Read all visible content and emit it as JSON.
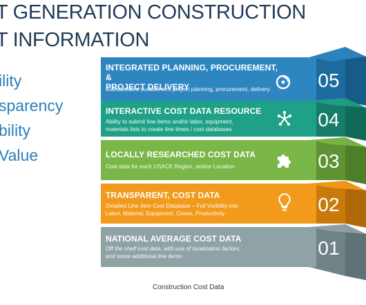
{
  "title": {
    "line1": "T GENERATION CONSTRUCTION",
    "line2": "T INFORMATION"
  },
  "side_items": [
    "ility",
    "sparency",
    "bility",
    "Value"
  ],
  "tiers": [
    {
      "number": "05",
      "title_line1": "INTEGRATED PLANNING, PROCUREMENT, &",
      "title_line2": "PROJECT DELIVERY",
      "desc_line1": "Standardized sustainment project planning, procurement, delivery",
      "desc_line2": "",
      "icon": "disc-icon",
      "color": "#2e86c1",
      "color_dark": "#1d6a9e",
      "color_side": "#185a88"
    },
    {
      "number": "04",
      "title_line1": "INTERACTIVE COST DATA RESOURCE",
      "title_line2": "",
      "desc_line1": "Ability to submit line items and/or labor, equipment,",
      "desc_line2": "materials lists to create line times / cost databases",
      "icon": "network-icon",
      "color": "#1fa187",
      "color_dark": "#157d69",
      "color_side": "#0f6a58"
    },
    {
      "number": "03",
      "title_line1": "LOCALLY RESEARCHED COST DATA",
      "title_line2": "",
      "desc_line1": "Cost data for each USACE Region, and/or Location",
      "desc_line2": "",
      "icon": "puzzle-icon",
      "color": "#7ab648",
      "color_dark": "#5e9233",
      "color_side": "#4f7e28"
    },
    {
      "number": "02",
      "title_line1": "TRANSPARENT, COST DATA",
      "title_line2": "",
      "desc_line1": "Detailed Line Item Cost Database – Full Visibility into",
      "desc_line2": "Labor, Material, Equipment, Crews, Productivity",
      "icon": "lightbulb-icon",
      "color": "#f29a1b",
      "color_dark": "#c97a0c",
      "color_side": "#b06908"
    },
    {
      "number": "01",
      "title_line1": "NATIONAL AVERAGE COST DATA",
      "title_line2": "",
      "desc_line1": "Off the shelf cost date, with use of localization factors,",
      "desc_line2": "and some additional line items",
      "icon": "",
      "color": "#8fa3a7",
      "color_dark": "#6f8387",
      "color_side": "#5f7276"
    }
  ],
  "caption": "Construction Cost Data"
}
